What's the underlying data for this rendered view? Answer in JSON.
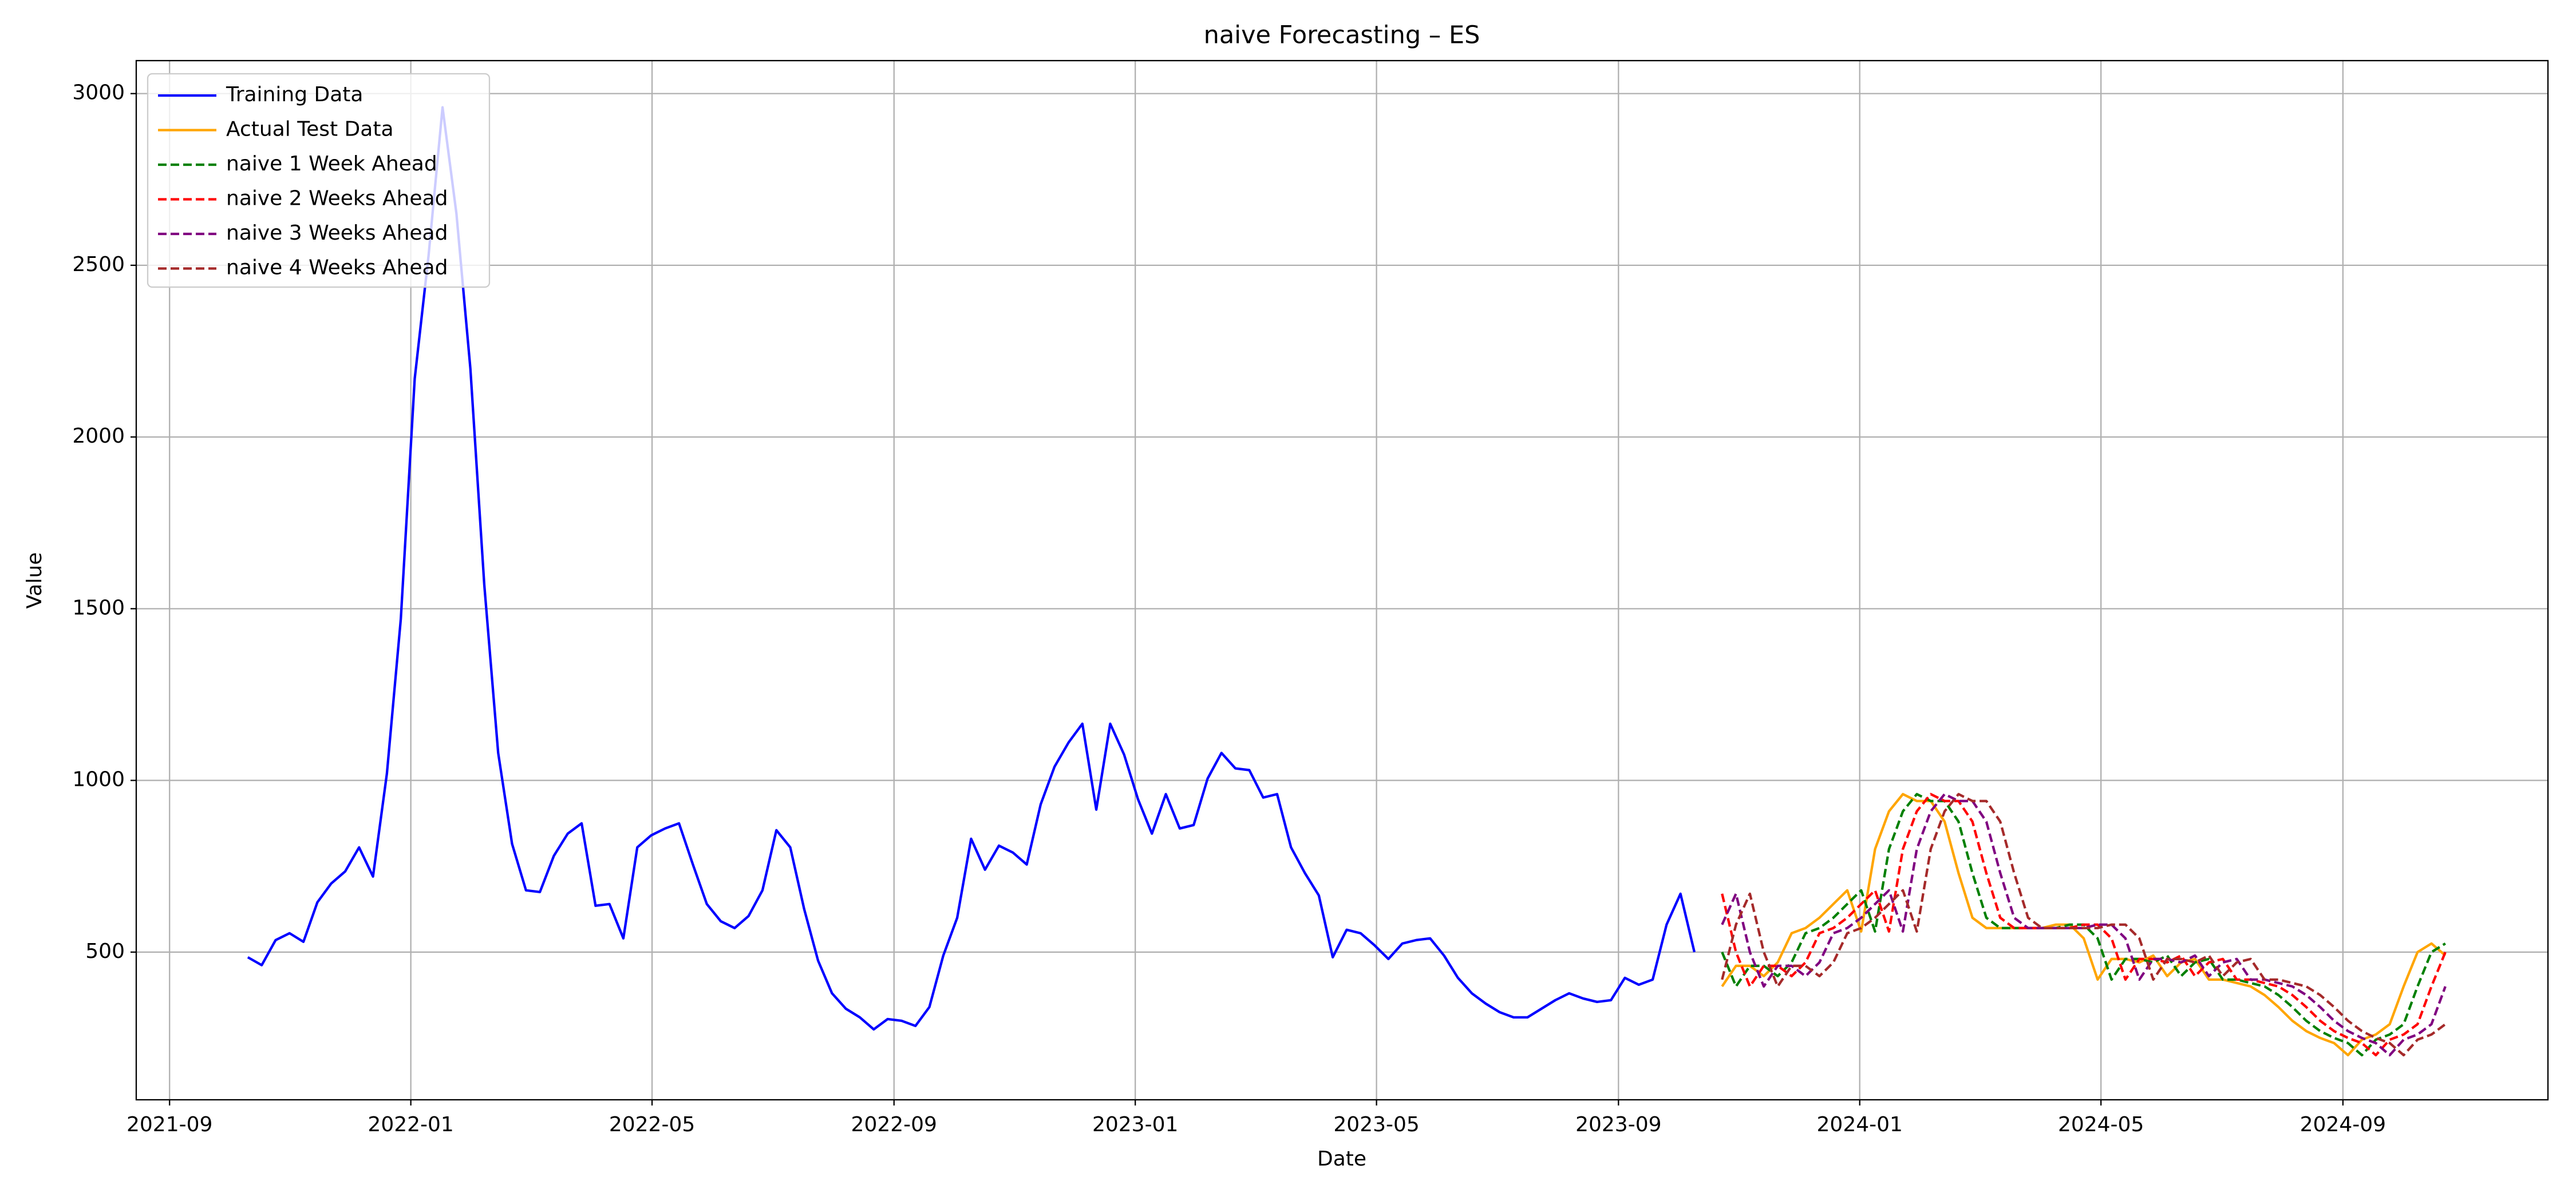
{
  "chart_data": {
    "type": "line",
    "title": "naive Forecasting – ES",
    "x_label": "Date",
    "y_label": "Value",
    "xlim": [
      2021.621,
      2024.95
    ],
    "ylim": [
      70,
      3096
    ],
    "xticks": [
      {
        "value": 2021.667,
        "label": "2021-09"
      },
      {
        "value": 2022.0,
        "label": "2022-01"
      },
      {
        "value": 2022.333,
        "label": "2022-05"
      },
      {
        "value": 2022.667,
        "label": "2022-09"
      },
      {
        "value": 2023.0,
        "label": "2023-01"
      },
      {
        "value": 2023.333,
        "label": "2023-05"
      },
      {
        "value": 2023.667,
        "label": "2023-09"
      },
      {
        "value": 2024.0,
        "label": "2024-01"
      },
      {
        "value": 2024.333,
        "label": "2024-05"
      },
      {
        "value": 2024.667,
        "label": "2024-09"
      }
    ],
    "yticks": [
      500,
      1000,
      1500,
      2000,
      2500,
      3000
    ],
    "grid": true,
    "legend": "upper left",
    "series": [
      {
        "name": "Training Data",
        "color": "#0000ff",
        "linestyle": "solid",
        "x": [
          2021.775,
          2021.7942,
          2021.8134,
          2021.8326,
          2021.8518,
          2021.871,
          2021.8902,
          2021.9094,
          2021.9286,
          2021.9478,
          2021.967,
          2021.9862,
          2022.0054,
          2022.0246,
          2022.0438,
          2022.063,
          2022.0822,
          2022.1014,
          2022.1206,
          2022.1398,
          2022.159,
          2022.1782,
          2022.1974,
          2022.2166,
          2022.2358,
          2022.255,
          2022.2742,
          2022.2934,
          2022.3126,
          2022.3318,
          2022.351,
          2022.3702,
          2022.3894,
          2022.4086,
          2022.4278,
          2022.447,
          2022.4662,
          2022.4854,
          2022.5046,
          2022.5238,
          2022.543,
          2022.5622,
          2022.5814,
          2022.6006,
          2022.6198,
          2022.639,
          2022.6582,
          2022.6774,
          2022.6966,
          2022.7158,
          2022.735,
          2022.7542,
          2022.7734,
          2022.7926,
          2022.8118,
          2022.831,
          2022.8502,
          2022.8694,
          2022.8886,
          2022.9078,
          2022.927,
          2022.9462,
          2022.9654,
          2022.9846,
          2023.0038,
          2023.023,
          2023.0422,
          2023.0614,
          2023.0806,
          2023.0998,
          2023.119,
          2023.1382,
          2023.1574,
          2023.1766,
          2023.1958,
          2023.215,
          2023.2342,
          2023.2534,
          2023.2726,
          2023.2918,
          2023.311,
          2023.3302,
          2023.3494,
          2023.3686,
          2023.3878,
          2023.407,
          2023.4262,
          2023.4454,
          2023.4646,
          2023.4838,
          2023.503,
          2023.5222,
          2023.5414,
          2023.5606,
          2023.5798,
          2023.599,
          2023.6182,
          2023.6374,
          2023.6566,
          2023.6758,
          2023.695,
          2023.7142,
          2023.7334,
          2023.7526,
          2023.7718
        ],
        "values": [
          485,
          462,
          535,
          555,
          530,
          645,
          700,
          735,
          805,
          720,
          1020,
          1470,
          2170,
          2530,
          2960,
          2650,
          2200,
          1570,
          1080,
          815,
          680,
          675,
          780,
          845,
          875,
          635,
          640,
          540,
          805,
          840,
          860,
          875,
          755,
          640,
          590,
          570,
          605,
          680,
          855,
          805,
          625,
          475,
          380,
          335,
          310,
          275,
          305,
          300,
          285,
          340,
          490,
          600,
          830,
          740,
          810,
          790,
          755,
          930,
          1040,
          1110,
          1165,
          915,
          1165,
          1075,
          945,
          845,
          960,
          860,
          870,
          1005,
          1080,
          1035,
          1030,
          950,
          960,
          805,
          730,
          665,
          485,
          565,
          555,
          520,
          480,
          525,
          535,
          540,
          490,
          425,
          380,
          350,
          325,
          310,
          310,
          335,
          360,
          380,
          365,
          355,
          360,
          425,
          405,
          420,
          580,
          670,
          500
        ]
      },
      {
        "name": "Actual Test Data",
        "color": "#ffa500",
        "linestyle": "solid",
        "x": [
          2023.81,
          2023.8292,
          2023.8484,
          2023.8676,
          2023.8868,
          2023.906,
          2023.9252,
          2023.9444,
          2023.9636,
          2023.9828,
          2024.002,
          2024.0212,
          2024.0404,
          2024.0596,
          2024.0788,
          2024.098,
          2024.1172,
          2024.1364,
          2024.1556,
          2024.1748,
          2024.194,
          2024.2132,
          2024.2324,
          2024.2516,
          2024.2708,
          2024.29,
          2024.3092,
          2024.3284,
          2024.3476,
          2024.3668,
          2024.386,
          2024.4052,
          2024.4244,
          2024.4436,
          2024.4628,
          2024.482,
          2024.5012,
          2024.5204,
          2024.5396,
          2024.5588,
          2024.578,
          2024.5972,
          2024.6164,
          2024.6356,
          2024.6548,
          2024.674,
          2024.6932,
          2024.7124,
          2024.7316,
          2024.7508,
          2024.77,
          2024.7892,
          2024.8084
        ],
        "values": [
          400,
          460,
          460,
          430,
          470,
          555,
          570,
          600,
          640,
          680,
          560,
          800,
          910,
          960,
          940,
          940,
          880,
          730,
          600,
          570,
          570,
          570,
          570,
          570,
          580,
          580,
          540,
          420,
          480,
          480,
          470,
          490,
          430,
          470,
          480,
          420,
          420,
          410,
          400,
          375,
          340,
          300,
          270,
          250,
          235,
          200,
          245,
          260,
          290,
          400,
          500,
          525,
          490
        ]
      },
      {
        "name": "naive 1 Week Ahead",
        "color": "#008000",
        "linestyle": "dashed",
        "x": [
          2023.81,
          2023.8292,
          2023.8484,
          2023.8676,
          2023.8868,
          2023.906,
          2023.9252,
          2023.9444,
          2023.9636,
          2023.9828,
          2024.002,
          2024.0212,
          2024.0404,
          2024.0596,
          2024.0788,
          2024.098,
          2024.1172,
          2024.1364,
          2024.1556,
          2024.1748,
          2024.194,
          2024.2132,
          2024.2324,
          2024.2516,
          2024.2708,
          2024.29,
          2024.3092,
          2024.3284,
          2024.3476,
          2024.3668,
          2024.386,
          2024.4052,
          2024.4244,
          2024.4436,
          2024.4628,
          2024.482,
          2024.5012,
          2024.5204,
          2024.5396,
          2024.5588,
          2024.578,
          2024.5972,
          2024.6164,
          2024.6356,
          2024.6548,
          2024.674,
          2024.6932,
          2024.7124,
          2024.7316,
          2024.7508,
          2024.77,
          2024.7892,
          2024.8084
        ],
        "values": [
          500,
          400,
          460,
          460,
          430,
          470,
          555,
          570,
          600,
          640,
          680,
          560,
          800,
          910,
          960,
          940,
          940,
          880,
          730,
          600,
          570,
          570,
          570,
          570,
          570,
          580,
          580,
          540,
          420,
          480,
          480,
          470,
          490,
          430,
          470,
          480,
          420,
          420,
          410,
          400,
          375,
          340,
          300,
          270,
          250,
          235,
          200,
          245,
          260,
          290,
          400,
          500,
          525
        ]
      },
      {
        "name": "naive 2 Weeks Ahead",
        "color": "#ff0000",
        "linestyle": "dashed",
        "x": [
          2023.81,
          2023.8292,
          2023.8484,
          2023.8676,
          2023.8868,
          2023.906,
          2023.9252,
          2023.9444,
          2023.9636,
          2023.9828,
          2024.002,
          2024.0212,
          2024.0404,
          2024.0596,
          2024.0788,
          2024.098,
          2024.1172,
          2024.1364,
          2024.1556,
          2024.1748,
          2024.194,
          2024.2132,
          2024.2324,
          2024.2516,
          2024.2708,
          2024.29,
          2024.3092,
          2024.3284,
          2024.3476,
          2024.3668,
          2024.386,
          2024.4052,
          2024.4244,
          2024.4436,
          2024.4628,
          2024.482,
          2024.5012,
          2024.5204,
          2024.5396,
          2024.5588,
          2024.578,
          2024.5972,
          2024.6164,
          2024.6356,
          2024.6548,
          2024.674,
          2024.6932,
          2024.7124,
          2024.7316,
          2024.7508,
          2024.77,
          2024.7892,
          2024.8084
        ],
        "values": [
          670,
          500,
          400,
          460,
          460,
          430,
          470,
          555,
          570,
          600,
          640,
          680,
          560,
          800,
          910,
          960,
          940,
          940,
          880,
          730,
          600,
          570,
          570,
          570,
          570,
          570,
          580,
          580,
          540,
          420,
          480,
          480,
          470,
          490,
          430,
          470,
          480,
          420,
          420,
          410,
          400,
          375,
          340,
          300,
          270,
          250,
          235,
          200,
          245,
          260,
          290,
          400,
          500
        ]
      },
      {
        "name": "naive 3 Weeks Ahead",
        "color": "#800080",
        "linestyle": "dashed",
        "x": [
          2023.81,
          2023.8292,
          2023.8484,
          2023.8676,
          2023.8868,
          2023.906,
          2023.9252,
          2023.9444,
          2023.9636,
          2023.9828,
          2024.002,
          2024.0212,
          2024.0404,
          2024.0596,
          2024.0788,
          2024.098,
          2024.1172,
          2024.1364,
          2024.1556,
          2024.1748,
          2024.194,
          2024.2132,
          2024.2324,
          2024.2516,
          2024.2708,
          2024.29,
          2024.3092,
          2024.3284,
          2024.3476,
          2024.3668,
          2024.386,
          2024.4052,
          2024.4244,
          2024.4436,
          2024.4628,
          2024.482,
          2024.5012,
          2024.5204,
          2024.5396,
          2024.5588,
          2024.578,
          2024.5972,
          2024.6164,
          2024.6356,
          2024.6548,
          2024.674,
          2024.6932,
          2024.7124,
          2024.7316,
          2024.7508,
          2024.77,
          2024.7892,
          2024.8084
        ],
        "values": [
          580,
          670,
          500,
          400,
          460,
          460,
          430,
          470,
          555,
          570,
          600,
          640,
          680,
          560,
          800,
          910,
          960,
          940,
          940,
          880,
          730,
          600,
          570,
          570,
          570,
          570,
          570,
          580,
          580,
          540,
          420,
          480,
          480,
          470,
          490,
          430,
          470,
          480,
          420,
          420,
          410,
          400,
          375,
          340,
          300,
          270,
          250,
          235,
          200,
          245,
          260,
          290,
          400
        ]
      },
      {
        "name": "naive 4 Weeks Ahead",
        "color": "#a52a2a",
        "linestyle": "dashed",
        "x": [
          2023.81,
          2023.8292,
          2023.8484,
          2023.8676,
          2023.8868,
          2023.906,
          2023.9252,
          2023.9444,
          2023.9636,
          2023.9828,
          2024.002,
          2024.0212,
          2024.0404,
          2024.0596,
          2024.0788,
          2024.098,
          2024.1172,
          2024.1364,
          2024.1556,
          2024.1748,
          2024.194,
          2024.2132,
          2024.2324,
          2024.2516,
          2024.2708,
          2024.29,
          2024.3092,
          2024.3284,
          2024.3476,
          2024.3668,
          2024.386,
          2024.4052,
          2024.4244,
          2024.4436,
          2024.4628,
          2024.482,
          2024.5012,
          2024.5204,
          2024.5396,
          2024.5588,
          2024.578,
          2024.5972,
          2024.6164,
          2024.6356,
          2024.6548,
          2024.674,
          2024.6932,
          2024.7124,
          2024.7316,
          2024.7508,
          2024.77,
          2024.7892,
          2024.8084
        ],
        "values": [
          420,
          580,
          670,
          500,
          400,
          460,
          460,
          430,
          470,
          555,
          570,
          600,
          640,
          680,
          560,
          800,
          910,
          960,
          940,
          940,
          880,
          730,
          600,
          570,
          570,
          570,
          570,
          570,
          580,
          580,
          540,
          420,
          480,
          480,
          470,
          490,
          430,
          470,
          480,
          420,
          420,
          410,
          400,
          375,
          340,
          300,
          270,
          250,
          235,
          200,
          245,
          260,
          290
        ]
      }
    ]
  }
}
